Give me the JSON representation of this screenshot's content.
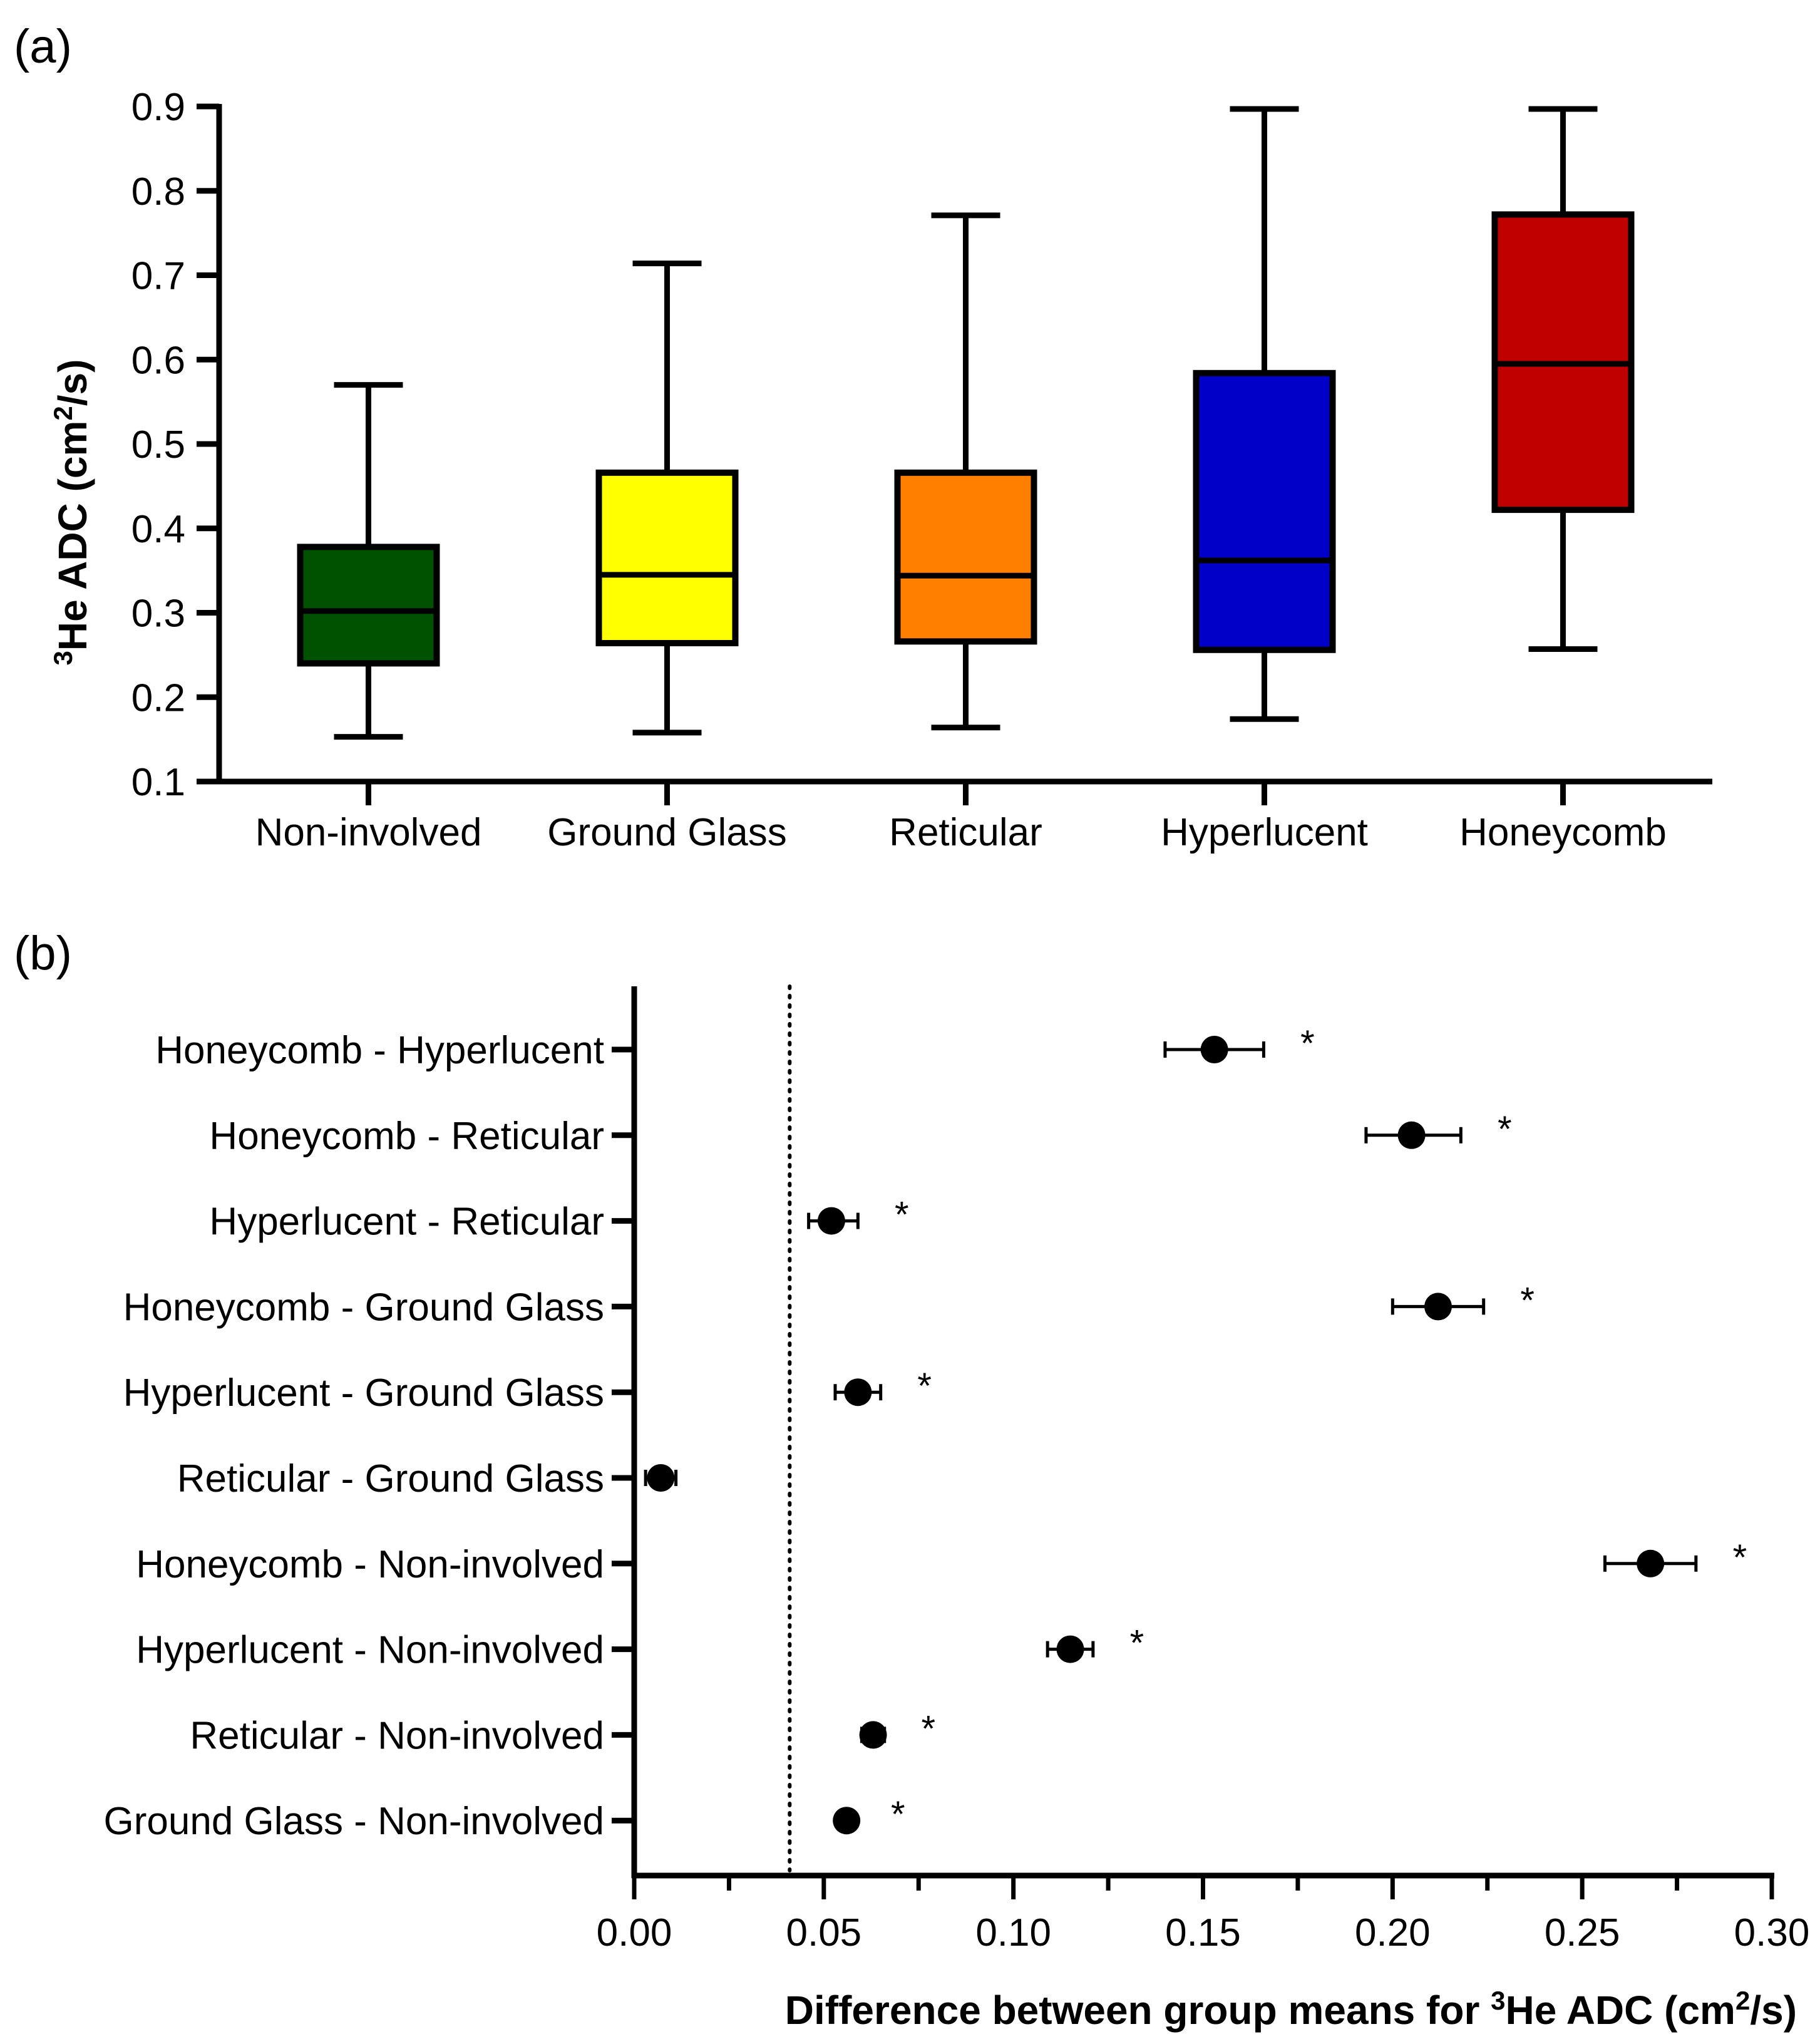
{
  "chart_data": [
    {
      "type": "box",
      "panel_label": "(a)",
      "title": "",
      "xlabel": "",
      "ylabel": {
        "prefix_sup": "3",
        "main": "He ADC (cm",
        "unit_sup": "2",
        "suffix": "/s)"
      },
      "ylim": [
        0.1,
        0.9
      ],
      "yticks": [
        "0.1",
        "0.2",
        "0.3",
        "0.4",
        "0.5",
        "0.6",
        "0.7",
        "0.8",
        "0.9"
      ],
      "categories": [
        "Non-involved",
        "Ground Glass",
        "Reticular",
        "Hyperlucent",
        "Honeycomb"
      ],
      "boxes": [
        {
          "name": "Non-involved",
          "min": 0.153,
          "q1": 0.24,
          "median": 0.302,
          "q3": 0.378,
          "max": 0.57,
          "color": "#005200"
        },
        {
          "name": "Ground Glass",
          "min": 0.158,
          "q1": 0.264,
          "median": 0.345,
          "q3": 0.466,
          "max": 0.714,
          "color": "#ffff00"
        },
        {
          "name": "Reticular",
          "min": 0.164,
          "q1": 0.266,
          "median": 0.344,
          "q3": 0.466,
          "max": 0.771,
          "color": "#ff8000"
        },
        {
          "name": "Hyperlucent",
          "min": 0.174,
          "q1": 0.256,
          "median": 0.362,
          "q3": 0.584,
          "max": 0.897,
          "color": "#0000c8"
        },
        {
          "name": "Honeycomb",
          "min": 0.257,
          "q1": 0.422,
          "median": 0.595,
          "q3": 0.772,
          "max": 0.897,
          "color": "#c00000"
        }
      ]
    },
    {
      "type": "forest",
      "panel_label": "(b)",
      "title": "",
      "xlabel": {
        "main": "Difference between group means for ",
        "prefix_sup": "3",
        "rest": "He ADC (cm",
        "unit_sup": "2",
        "suffix": "/s)"
      },
      "ylabel": "",
      "xlim": [
        0.0,
        0.3
      ],
      "xticks": [
        "0.00",
        "0.05",
        "0.10",
        "0.15",
        "0.20",
        "0.25",
        "0.30"
      ],
      "reference_line": 0.041,
      "significance_marker": "*",
      "comparisons": [
        {
          "label": "Honeycomb - Hyperlucent",
          "mean": 0.153,
          "ci_low": 0.14,
          "ci_high": 0.166,
          "significant": true
        },
        {
          "label": "Honeycomb - Reticular",
          "mean": 0.205,
          "ci_low": 0.193,
          "ci_high": 0.218,
          "significant": true
        },
        {
          "label": "Hyperlucent - Reticular",
          "mean": 0.052,
          "ci_low": 0.046,
          "ci_high": 0.059,
          "significant": true
        },
        {
          "label": "Honeycomb - Ground Glass",
          "mean": 0.212,
          "ci_low": 0.2,
          "ci_high": 0.224,
          "significant": true
        },
        {
          "label": "Hyperlucent - Ground Glass",
          "mean": 0.059,
          "ci_low": 0.053,
          "ci_high": 0.065,
          "significant": true
        },
        {
          "label": "Reticular - Ground Glass",
          "mean": 0.007,
          "ci_low": 0.003,
          "ci_high": 0.011,
          "significant": false
        },
        {
          "label": "Honeycomb - Non-involved",
          "mean": 0.268,
          "ci_low": 0.256,
          "ci_high": 0.28,
          "significant": true
        },
        {
          "label": "Hyperlucent - Non-involved",
          "mean": 0.115,
          "ci_low": 0.109,
          "ci_high": 0.121,
          "significant": true
        },
        {
          "label": "Reticular - Non-involved",
          "mean": 0.063,
          "ci_low": 0.06,
          "ci_high": 0.066,
          "significant": true
        },
        {
          "label": "Ground Glass - Non-involved",
          "mean": 0.056,
          "ci_low": 0.054,
          "ci_high": 0.058,
          "significant": true
        }
      ]
    }
  ]
}
